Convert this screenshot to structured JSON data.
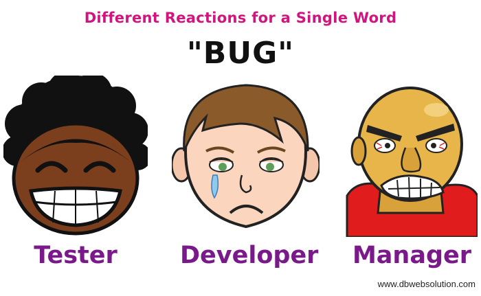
{
  "subtitle": "Different Reactions for a Single Word",
  "headline": "\"BUG\"",
  "roles": [
    {
      "label": "Tester",
      "expression": "laughing-face"
    },
    {
      "label": "Developer",
      "expression": "crying-face"
    },
    {
      "label": "Manager",
      "expression": "angry-face"
    }
  ],
  "credit": "www.dbwebsolution.com",
  "colors": {
    "subtitle": "#d0157f",
    "role_label": "#7a1a8a",
    "manager_shirt": "#e11c1c"
  }
}
